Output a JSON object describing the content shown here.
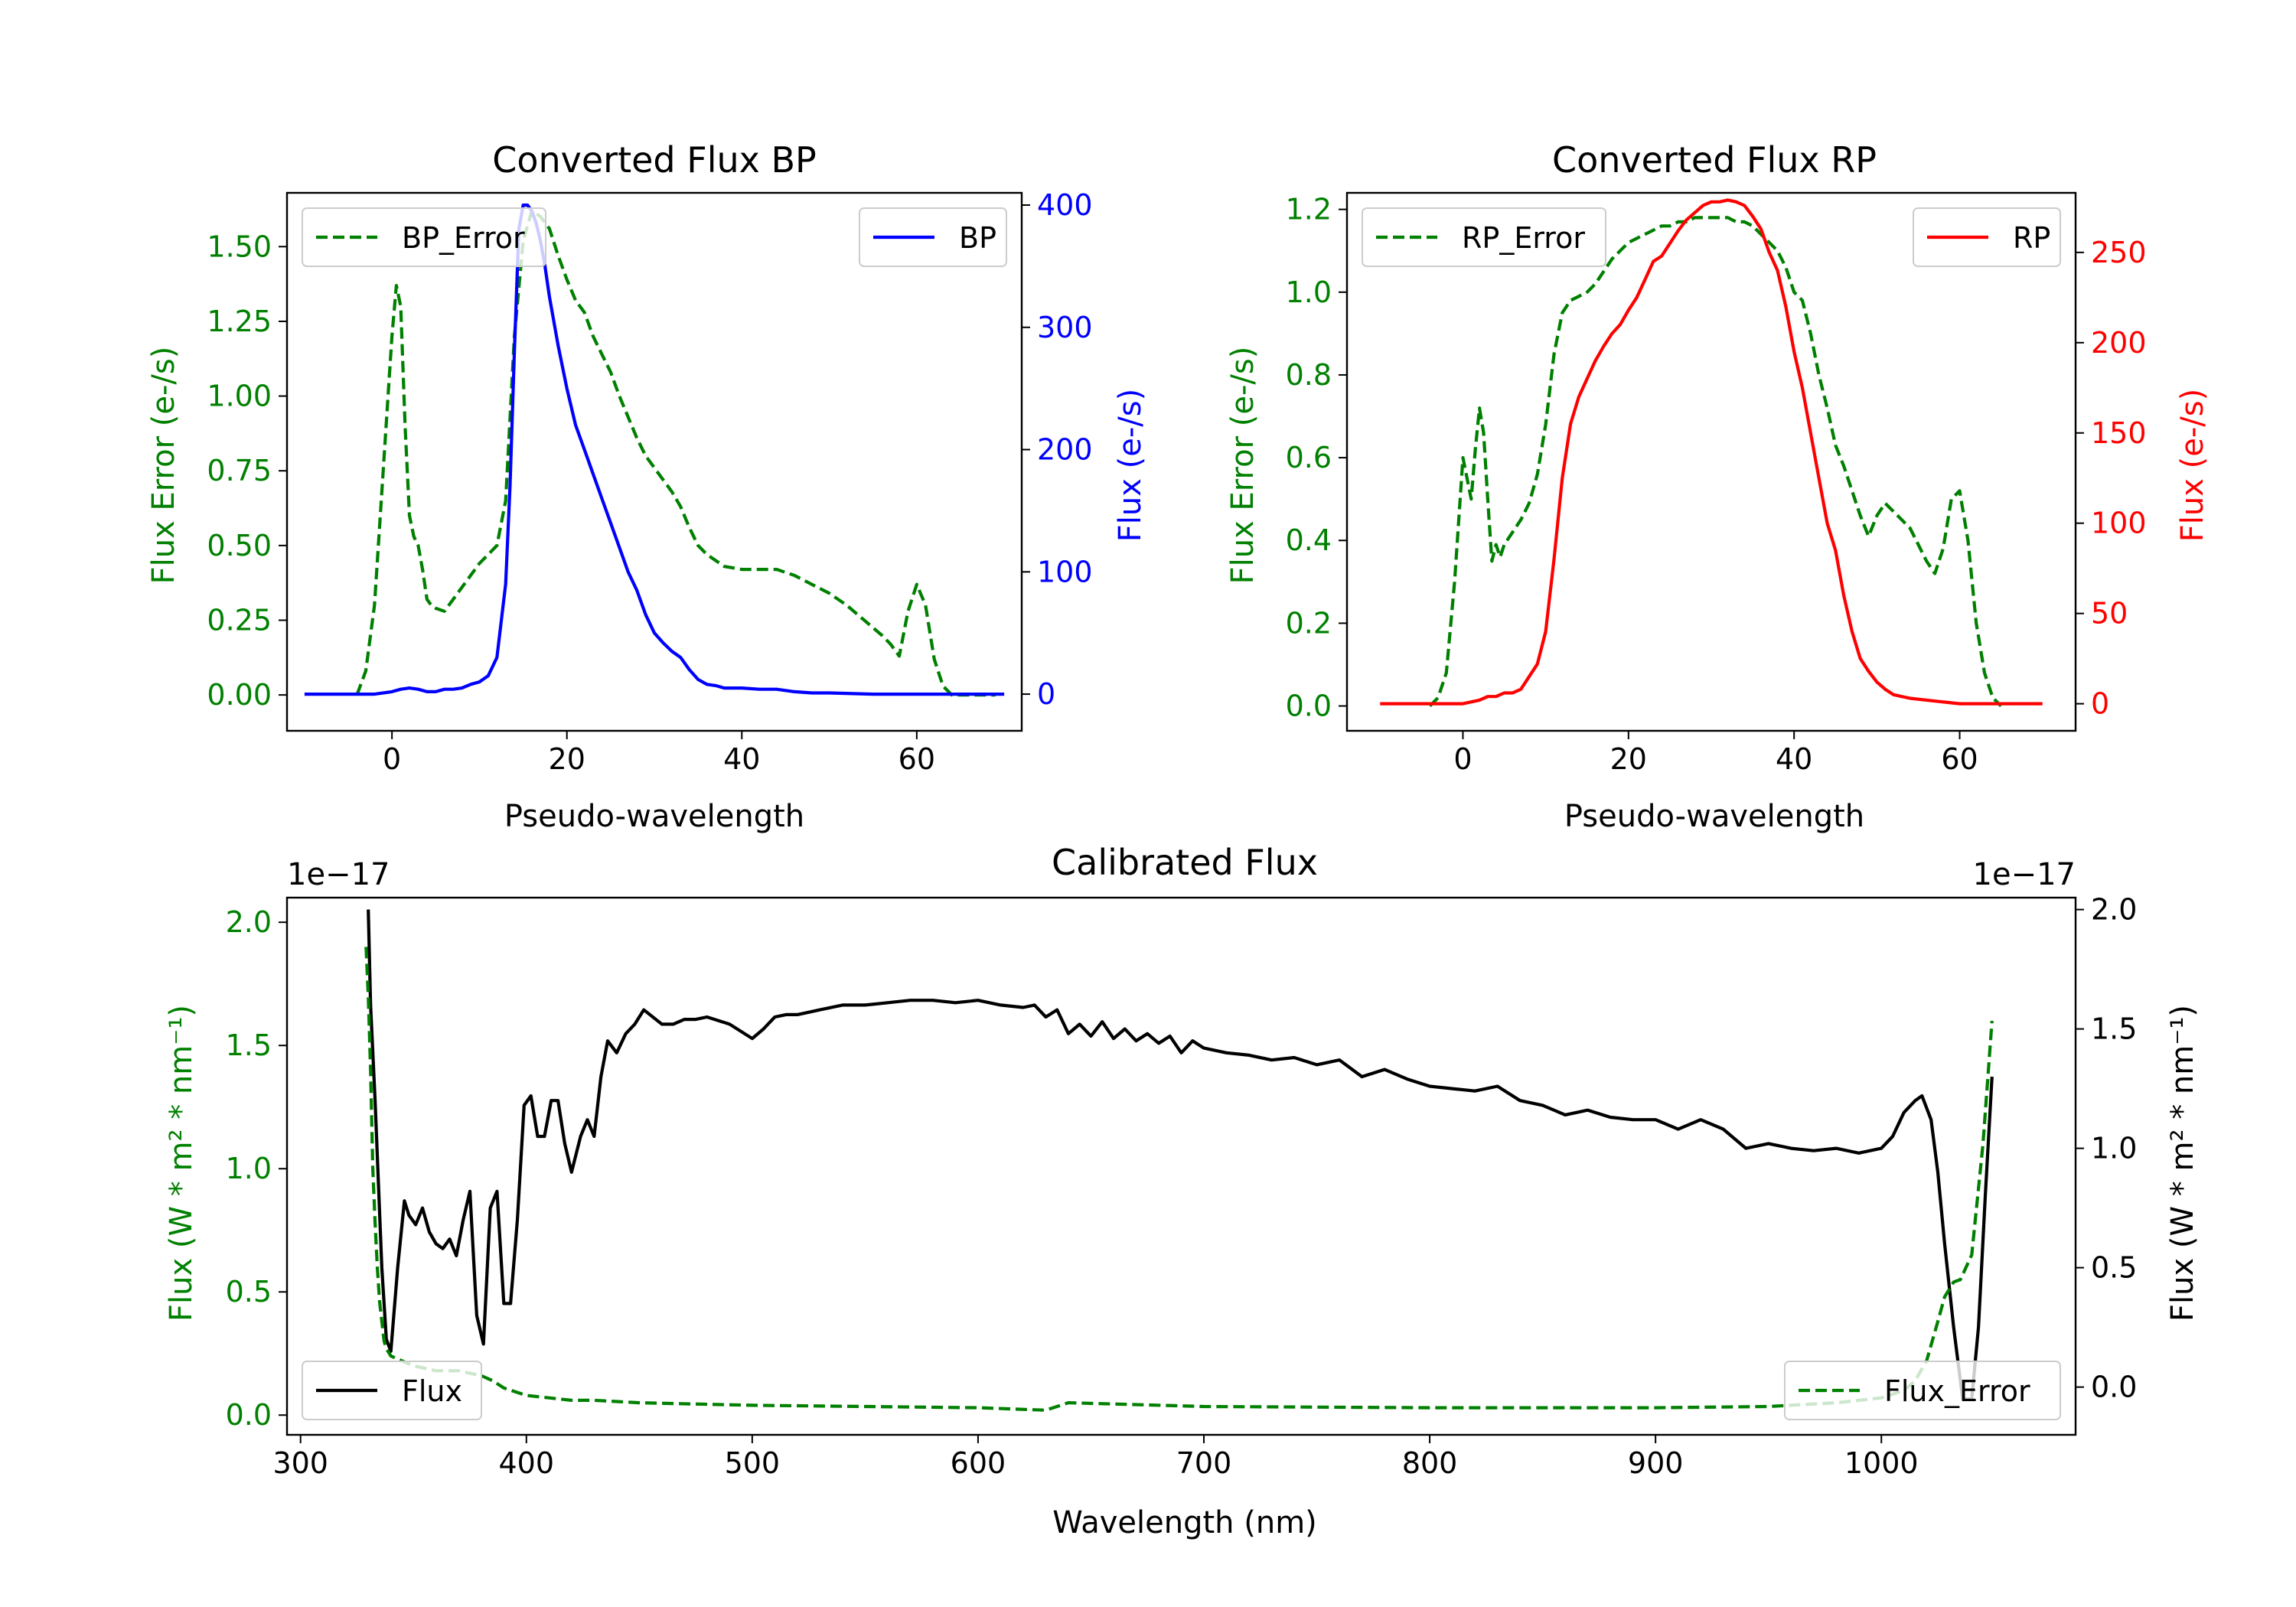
{
  "chart_data": [
    {
      "type": "line",
      "title": "Converted Flux BP",
      "xlabel": "Pseudo-wavelength",
      "ylabel_left": "Flux Error (e-/s)",
      "ylabel_right": "Flux (e-/s)",
      "xlim": [
        -12,
        72
      ],
      "ylim_left": [
        -0.12,
        1.68
      ],
      "ylim_right": [
        -30,
        410
      ],
      "xticks": [
        "0",
        "20",
        "40",
        "60"
      ],
      "yticks_left": [
        "0.00",
        "0.25",
        "0.50",
        "0.75",
        "1.00",
        "1.25",
        "1.50"
      ],
      "yticks_right": [
        "0",
        "100",
        "200",
        "300",
        "400"
      ],
      "legend_left": "BP_Error",
      "legend_right": "BP",
      "colors": {
        "error": "#008000",
        "flux": "#0000ff"
      },
      "series": [
        {
          "name": "BP_Error",
          "axis": "left",
          "style": "dashed",
          "x": [
            -4,
            -3,
            -2,
            -1,
            0,
            0.5,
            1,
            1.5,
            2,
            2.5,
            3,
            3.5,
            4,
            4.5,
            5,
            6,
            7,
            8,
            9,
            10,
            11,
            12,
            13,
            14,
            15,
            16,
            17,
            18,
            19,
            20,
            21,
            22,
            23,
            24,
            25,
            26,
            27,
            28,
            29,
            30,
            31,
            32,
            33,
            34,
            35,
            36,
            37,
            38,
            40,
            42,
            44,
            45,
            46,
            48,
            50,
            52,
            54,
            56,
            57,
            58,
            59,
            60,
            61,
            62,
            63,
            64,
            66,
            68,
            69
          ],
          "y": [
            0.0,
            0.08,
            0.3,
            0.75,
            1.2,
            1.37,
            1.3,
            0.9,
            0.6,
            0.53,
            0.5,
            0.42,
            0.32,
            0.3,
            0.29,
            0.28,
            0.32,
            0.36,
            0.4,
            0.44,
            0.47,
            0.5,
            0.65,
            1.2,
            1.52,
            1.62,
            1.6,
            1.56,
            1.47,
            1.39,
            1.32,
            1.28,
            1.2,
            1.14,
            1.08,
            1.0,
            0.93,
            0.86,
            0.8,
            0.76,
            0.72,
            0.68,
            0.63,
            0.56,
            0.5,
            0.47,
            0.45,
            0.43,
            0.42,
            0.42,
            0.42,
            0.41,
            0.4,
            0.37,
            0.34,
            0.3,
            0.25,
            0.2,
            0.17,
            0.13,
            0.28,
            0.37,
            0.3,
            0.12,
            0.03,
            0.0,
            0.0,
            0.0,
            0.0
          ]
        },
        {
          "name": "BP",
          "axis": "right",
          "style": "solid",
          "x": [
            -10,
            -8,
            -6,
            -4,
            -2,
            0,
            1,
            2,
            3,
            4,
            5,
            6,
            7,
            8,
            9,
            10,
            11,
            12,
            13,
            13.5,
            14,
            14.5,
            15,
            15.5,
            16,
            16.5,
            17,
            17.5,
            18,
            19,
            20,
            21,
            22,
            23,
            24,
            25,
            26,
            27,
            28,
            29,
            30,
            31,
            32,
            33,
            34,
            35,
            36,
            37,
            38,
            40,
            42,
            44,
            46,
            48,
            50,
            55,
            60,
            65,
            70
          ],
          "y": [
            0,
            0,
            0,
            0,
            0,
            2,
            4,
            5,
            4,
            2,
            2,
            4,
            4,
            5,
            8,
            10,
            15,
            30,
            90,
            170,
            280,
            380,
            400,
            400,
            395,
            385,
            370,
            350,
            325,
            285,
            250,
            220,
            200,
            180,
            160,
            140,
            120,
            100,
            85,
            65,
            50,
            42,
            35,
            30,
            20,
            12,
            8,
            7,
            5,
            5,
            4,
            4,
            2,
            1,
            1,
            0,
            0,
            0,
            0
          ]
        }
      ]
    },
    {
      "type": "line",
      "title": "Converted Flux RP",
      "xlabel": "Pseudo-wavelength",
      "ylabel_left": "Flux Error (e-/s)",
      "ylabel_right": "Flux (e-/s)",
      "xlim": [
        -14,
        74
      ],
      "ylim_left": [
        -0.06,
        1.24
      ],
      "ylim_right": [
        -15,
        283
      ],
      "xticks": [
        "0",
        "20",
        "40",
        "60"
      ],
      "yticks_left": [
        "0.0",
        "0.2",
        "0.4",
        "0.6",
        "0.8",
        "1.0",
        "1.2"
      ],
      "yticks_right": [
        "0",
        "50",
        "100",
        "150",
        "200",
        "250"
      ],
      "legend_left": "RP_Error",
      "legend_right": "RP",
      "colors": {
        "error": "#008000",
        "flux": "#ff0000"
      },
      "series": [
        {
          "name": "RP_Error",
          "axis": "left",
          "style": "dashed",
          "x": [
            -4,
            -3,
            -2,
            -1,
            0,
            1,
            1.5,
            2,
            2.5,
            3,
            3.5,
            4,
            4.5,
            5,
            6,
            7,
            8,
            9,
            10,
            11,
            12,
            13,
            14,
            15,
            16,
            17,
            18,
            19,
            20,
            21,
            22,
            23,
            24,
            25,
            26,
            27,
            28,
            29,
            30,
            31,
            32,
            33,
            34,
            35,
            36,
            37,
            38,
            39,
            40,
            41,
            42,
            43,
            44,
            45,
            46,
            47,
            48,
            49,
            50,
            51,
            52,
            53,
            54,
            55,
            56,
            57,
            58,
            59,
            60,
            61,
            62,
            63,
            64,
            65
          ],
          "y": [
            0.0,
            0.02,
            0.08,
            0.3,
            0.6,
            0.5,
            0.62,
            0.72,
            0.66,
            0.5,
            0.35,
            0.39,
            0.36,
            0.39,
            0.42,
            0.45,
            0.49,
            0.56,
            0.68,
            0.85,
            0.95,
            0.98,
            0.99,
            1.0,
            1.02,
            1.05,
            1.08,
            1.1,
            1.12,
            1.13,
            1.14,
            1.15,
            1.16,
            1.16,
            1.17,
            1.17,
            1.18,
            1.18,
            1.18,
            1.18,
            1.18,
            1.17,
            1.17,
            1.16,
            1.14,
            1.12,
            1.1,
            1.06,
            1.0,
            0.98,
            0.9,
            0.8,
            0.72,
            0.63,
            0.58,
            0.52,
            0.46,
            0.41,
            0.46,
            0.49,
            0.47,
            0.45,
            0.43,
            0.39,
            0.35,
            0.32,
            0.38,
            0.5,
            0.52,
            0.4,
            0.2,
            0.08,
            0.02,
            0.0
          ]
        },
        {
          "name": "RP",
          "axis": "right",
          "style": "solid",
          "x": [
            -10,
            -6,
            -2,
            0,
            2,
            3,
            4,
            5,
            6,
            7,
            8,
            9,
            10,
            11,
            12,
            13,
            14,
            15,
            16,
            17,
            18,
            19,
            20,
            21,
            22,
            23,
            24,
            25,
            26,
            27,
            28,
            29,
            30,
            31,
            32,
            33,
            34,
            35,
            36,
            37,
            38,
            39,
            40,
            41,
            42,
            43,
            44,
            45,
            46,
            47,
            48,
            49,
            50,
            51,
            52,
            54,
            56,
            58,
            60,
            62,
            65,
            70
          ],
          "y": [
            0,
            0,
            0,
            0,
            2,
            4,
            4,
            6,
            6,
            8,
            15,
            22,
            40,
            80,
            125,
            155,
            170,
            180,
            190,
            198,
            205,
            210,
            218,
            225,
            235,
            245,
            248,
            255,
            262,
            268,
            272,
            276,
            278,
            278,
            279,
            278,
            276,
            270,
            263,
            250,
            240,
            220,
            195,
            175,
            150,
            125,
            100,
            85,
            60,
            40,
            25,
            18,
            12,
            8,
            5,
            3,
            2,
            1,
            0,
            0,
            0,
            0
          ]
        }
      ]
    },
    {
      "type": "line",
      "title": "Calibrated Flux",
      "xlabel": "Wavelength (nm)",
      "ylabel_left": "Flux (W * m² * nm⁻¹)",
      "ylabel_right": "Flux (W * m² * nm⁻¹)",
      "offset_left": "1e−17",
      "offset_right": "1e−17",
      "xlim": [
        294,
        1086
      ],
      "ylim_left": [
        -0.08,
        2.1
      ],
      "ylim_right": [
        -0.2,
        2.05
      ],
      "xticks": [
        "300",
        "400",
        "500",
        "600",
        "700",
        "800",
        "900",
        "1000"
      ],
      "yticks_left": [
        "0.0",
        "0.5",
        "1.0",
        "1.5",
        "2.0"
      ],
      "yticks_right": [
        "0.0",
        "0.5",
        "1.0",
        "1.5",
        "2.0"
      ],
      "legend_left": "Flux",
      "legend_right": "Flux_Error",
      "colors": {
        "error": "#008000",
        "flux": "#000000"
      },
      "series": [
        {
          "name": "Flux",
          "axis": "right",
          "style": "solid",
          "x": [
            330,
            331,
            333,
            336,
            338,
            340,
            343,
            346,
            348,
            351,
            354,
            357,
            360,
            363,
            366,
            369,
            372,
            375,
            378,
            381,
            384,
            387,
            390,
            393,
            396,
            399,
            402,
            405,
            408,
            411,
            414,
            417,
            420,
            424,
            427,
            430,
            433,
            436,
            440,
            444,
            448,
            452,
            456,
            460,
            465,
            470,
            475,
            480,
            490,
            500,
            505,
            510,
            515,
            520,
            525,
            530,
            540,
            550,
            560,
            570,
            580,
            590,
            600,
            610,
            620,
            625,
            630,
            635,
            640,
            645,
            650,
            655,
            660,
            665,
            670,
            675,
            680,
            685,
            690,
            695,
            700,
            705,
            710,
            720,
            730,
            740,
            750,
            760,
            770,
            780,
            790,
            800,
            810,
            820,
            830,
            840,
            850,
            860,
            870,
            880,
            890,
            900,
            910,
            920,
            930,
            940,
            950,
            960,
            970,
            980,
            990,
            1000,
            1005,
            1010,
            1015,
            1018,
            1022,
            1025,
            1028,
            1032,
            1036,
            1040,
            1043,
            1046,
            1049
          ],
          "y": [
            2.0,
            1.6,
            1.2,
            0.5,
            0.2,
            0.15,
            0.5,
            0.78,
            0.72,
            0.68,
            0.75,
            0.65,
            0.6,
            0.58,
            0.62,
            0.55,
            0.7,
            0.82,
            0.3,
            0.18,
            0.75,
            0.82,
            0.35,
            0.35,
            0.7,
            1.18,
            1.22,
            1.05,
            1.05,
            1.2,
            1.2,
            1.02,
            0.9,
            1.05,
            1.12,
            1.05,
            1.3,
            1.45,
            1.4,
            1.48,
            1.52,
            1.58,
            1.55,
            1.52,
            1.52,
            1.54,
            1.54,
            1.55,
            1.52,
            1.46,
            1.5,
            1.55,
            1.56,
            1.56,
            1.57,
            1.58,
            1.6,
            1.6,
            1.61,
            1.62,
            1.62,
            1.61,
            1.62,
            1.6,
            1.59,
            1.6,
            1.55,
            1.58,
            1.48,
            1.52,
            1.47,
            1.53,
            1.46,
            1.5,
            1.45,
            1.48,
            1.44,
            1.47,
            1.4,
            1.45,
            1.42,
            1.41,
            1.4,
            1.39,
            1.37,
            1.38,
            1.35,
            1.37,
            1.3,
            1.33,
            1.29,
            1.26,
            1.25,
            1.24,
            1.26,
            1.2,
            1.18,
            1.14,
            1.16,
            1.13,
            1.12,
            1.12,
            1.08,
            1.12,
            1.08,
            1.0,
            1.02,
            1.0,
            0.99,
            1.0,
            0.98,
            1.0,
            1.05,
            1.15,
            1.2,
            1.22,
            1.12,
            0.9,
            0.6,
            0.25,
            -0.05,
            -0.05,
            0.25,
            0.8,
            1.3
          ]
        },
        {
          "name": "Flux_Error",
          "axis": "left",
          "style": "dashed",
          "x": [
            329,
            330,
            331,
            332,
            333,
            334,
            335,
            336,
            337,
            338,
            340,
            345,
            350,
            360,
            370,
            380,
            385,
            390,
            400,
            410,
            420,
            430,
            450,
            500,
            550,
            600,
            630,
            640,
            660,
            700,
            800,
            900,
            950,
            980,
            1000,
            1010,
            1015,
            1020,
            1025,
            1028,
            1032,
            1035,
            1040,
            1045,
            1049
          ],
          "y": [
            1.9,
            1.7,
            1.4,
            1.0,
            0.78,
            0.6,
            0.46,
            0.38,
            0.3,
            0.27,
            0.24,
            0.22,
            0.2,
            0.18,
            0.18,
            0.16,
            0.14,
            0.11,
            0.08,
            0.07,
            0.06,
            0.06,
            0.05,
            0.04,
            0.035,
            0.03,
            0.02,
            0.05,
            0.045,
            0.035,
            0.03,
            0.03,
            0.035,
            0.05,
            0.07,
            0.1,
            0.14,
            0.22,
            0.38,
            0.48,
            0.54,
            0.55,
            0.65,
            1.1,
            1.6
          ]
        }
      ]
    }
  ]
}
